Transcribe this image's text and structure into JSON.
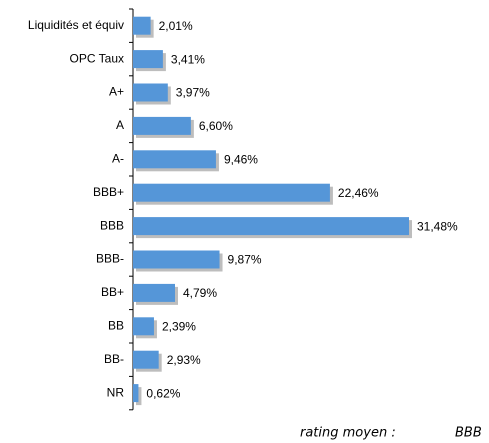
{
  "chart_data": {
    "type": "bar",
    "orientation": "horizontal",
    "categories": [
      "Liquidités et équiv",
      "OPC Taux",
      "A+",
      "A",
      "A-",
      "BBB+",
      "BBB",
      "BBB-",
      "BB+",
      "BB",
      "BB-",
      "NR"
    ],
    "values": [
      2.01,
      3.41,
      3.97,
      6.6,
      9.46,
      22.46,
      31.48,
      9.87,
      4.79,
      2.39,
      2.93,
      0.62
    ],
    "value_labels": [
      "2,01%",
      "3,41%",
      "3,97%",
      "6,60%",
      "9,46%",
      "22,46%",
      "31,48%",
      "9,87%",
      "4,79%",
      "2,39%",
      "2,93%",
      "0,62%"
    ],
    "color": "#5596d8",
    "annotations": [
      "rating moyen :",
      "BBB"
    ]
  }
}
